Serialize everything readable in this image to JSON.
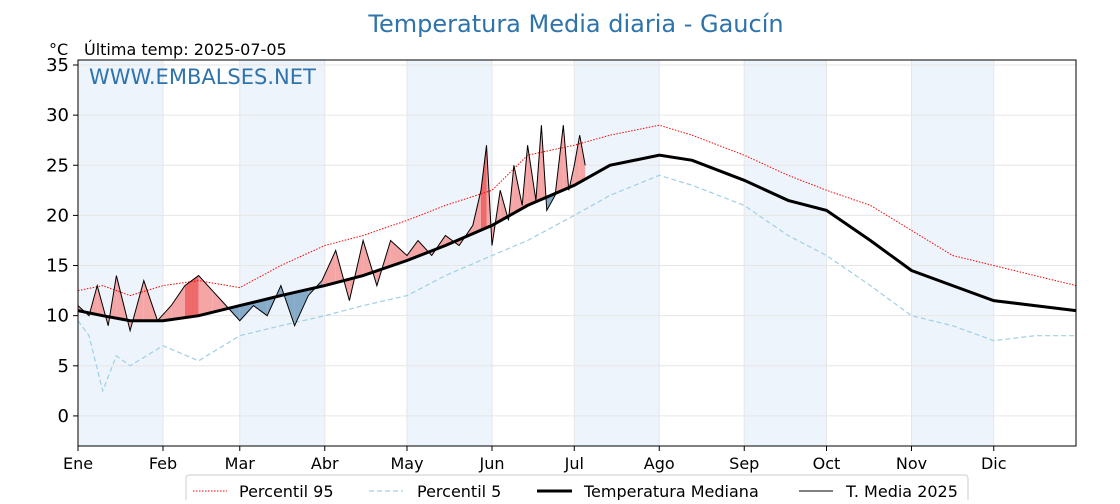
{
  "title": "Temperatura Media diaria - Gaucín",
  "unit_label": "°C",
  "last_temp_label": "Última temp: 2025-07-05",
  "watermark": "WWW.EMBALSES.NET",
  "colors": {
    "p95": "#ff0000",
    "p5": "#9fd0e3",
    "median": "#000000",
    "current": "#000000",
    "above_fill": "#f4a6a6",
    "above_strong_fill": "#ee6a6a",
    "below_fill": "#86abc8",
    "month_band": "#eef4fb",
    "title": "#2f73ab"
  },
  "chart_data": {
    "type": "line",
    "title": "Temperatura Media diaria - Gaucín",
    "ylabel": "°C",
    "ylim": [
      -3,
      35.5
    ],
    "yticks": [
      0,
      5,
      10,
      15,
      20,
      25,
      30,
      35
    ],
    "xlim_days": [
      1,
      365
    ],
    "months": [
      "Ene",
      "Feb",
      "Mar",
      "Abr",
      "May",
      "Jun",
      "Jul",
      "Ago",
      "Sep",
      "Oct",
      "Nov",
      "Dic"
    ],
    "month_start_days": [
      1,
      32,
      60,
      91,
      121,
      152,
      182,
      213,
      244,
      274,
      305,
      335
    ],
    "grid": true,
    "legend_position": "bottom-center",
    "series": [
      {
        "name": "Percentil 95",
        "style": "dotted-red",
        "x": [
          1,
          10,
          20,
          32,
          45,
          60,
          75,
          91,
          105,
          121,
          135,
          152,
          165,
          182,
          195,
          213,
          225,
          244,
          260,
          274,
          290,
          305,
          320,
          335,
          350,
          365
        ],
        "y": [
          12.5,
          13.0,
          12.0,
          13.0,
          13.5,
          12.8,
          15.0,
          17.0,
          18.0,
          19.5,
          21.0,
          22.5,
          26.0,
          27.0,
          28.0,
          29.0,
          28.0,
          26.0,
          24.0,
          22.5,
          21.0,
          18.5,
          16.0,
          15.0,
          14.0,
          13.0
        ]
      },
      {
        "name": "Percentil 5",
        "style": "dashed-lightblue",
        "x": [
          1,
          5,
          10,
          15,
          20,
          32,
          45,
          60,
          75,
          91,
          105,
          121,
          135,
          152,
          165,
          182,
          195,
          213,
          225,
          244,
          260,
          274,
          290,
          305,
          320,
          335,
          350,
          365
        ],
        "y": [
          9.5,
          8.0,
          2.5,
          6.0,
          5.0,
          7.0,
          5.5,
          8.0,
          9.0,
          10.0,
          11.0,
          12.0,
          14.0,
          16.0,
          17.5,
          20.0,
          22.0,
          24.0,
          23.0,
          21.0,
          18.0,
          16.0,
          13.0,
          10.0,
          9.0,
          7.5,
          8.0,
          8.0
        ]
      },
      {
        "name": "Temperatura Mediana",
        "style": "thick-black",
        "x": [
          1,
          10,
          20,
          32,
          45,
          60,
          75,
          91,
          105,
          121,
          135,
          152,
          165,
          182,
          195,
          213,
          225,
          244,
          260,
          274,
          290,
          305,
          320,
          335,
          350,
          365
        ],
        "y": [
          10.5,
          10.0,
          9.5,
          9.5,
          10.0,
          11.0,
          12.0,
          13.0,
          14.0,
          15.5,
          17.0,
          19.0,
          21.0,
          23.0,
          25.0,
          26.0,
          25.5,
          23.5,
          21.5,
          20.5,
          17.5,
          14.5,
          13.0,
          11.5,
          11.0,
          10.5
        ]
      },
      {
        "name": "T. Media 2025",
        "style": "thin-black",
        "x": [
          1,
          5,
          8,
          12,
          15,
          20,
          25,
          30,
          35,
          40,
          45,
          50,
          55,
          60,
          65,
          70,
          75,
          80,
          85,
          90,
          95,
          100,
          105,
          110,
          115,
          121,
          125,
          130,
          135,
          140,
          145,
          148,
          150,
          152,
          155,
          158,
          160,
          163,
          165,
          168,
          170,
          172,
          175,
          178,
          180,
          182,
          184,
          186
        ],
        "y": [
          11.0,
          10.0,
          13.0,
          9.0,
          14.0,
          8.5,
          13.5,
          9.5,
          11.0,
          13.0,
          14.0,
          12.5,
          11.0,
          9.5,
          11.0,
          10.0,
          13.0,
          9.0,
          12.0,
          13.5,
          16.5,
          11.5,
          17.5,
          13.0,
          17.5,
          16.0,
          17.5,
          16.0,
          18.0,
          17.0,
          19.0,
          22.5,
          27.0,
          17.0,
          22.5,
          19.5,
          25.0,
          21.0,
          27.0,
          21.5,
          29.0,
          20.5,
          22.0,
          29.0,
          22.5,
          25.0,
          28.0,
          25.0
        ]
      }
    ]
  },
  "legend": {
    "p95": "Percentil 95",
    "p5": "Percentil 5",
    "median": "Temperatura Mediana",
    "current": "T. Media 2025"
  }
}
